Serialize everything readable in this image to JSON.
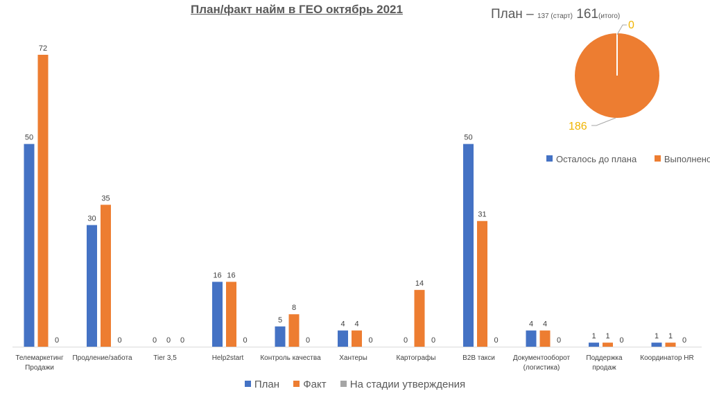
{
  "chart_data": [
    {
      "type": "bar",
      "title": "План/факт найм в ГЕО октябрь 2021",
      "xlabel": "",
      "ylabel": "",
      "ylim": [
        0,
        72
      ],
      "grid": false,
      "legend_position": "bottom",
      "categories": [
        [
          "Телемаркетинг",
          "Продажи"
        ],
        [
          "Продление/забота"
        ],
        [
          "Tier 3,5"
        ],
        [
          "Help2start"
        ],
        [
          "Контроль качества"
        ],
        [
          "Хантеры"
        ],
        [
          "Картографы"
        ],
        [
          "B2B такси"
        ],
        [
          "Документооборот",
          "(логистика)"
        ],
        [
          "Поддержка",
          "продаж"
        ],
        [
          "Координатор HR"
        ]
      ],
      "series": [
        {
          "name": "План",
          "color": "#4472c4",
          "values": [
            50,
            30,
            0,
            16,
            5,
            4,
            0,
            50,
            4,
            1,
            1
          ]
        },
        {
          "name": "Факт",
          "color": "#ed7d31",
          "values": [
            72,
            35,
            0,
            16,
            8,
            4,
            14,
            31,
            4,
            1,
            1
          ]
        },
        {
          "name": "На стадии утверждения",
          "color": "#a5a5a5",
          "values": [
            0,
            0,
            0,
            0,
            0,
            0,
            0,
            0,
            0,
            0,
            0
          ]
        }
      ]
    },
    {
      "type": "pie",
      "title_main": "План – ",
      "title_start_value": "137 (старт)",
      "title_total_value": "161",
      "title_total_suffix": "(итого)",
      "slices": [
        {
          "name": "Осталось до плана",
          "value": 0,
          "label": "0",
          "color": "#4472c4"
        },
        {
          "name": "Выполнено",
          "value": 186,
          "label": "186",
          "color": "#ed7d31"
        }
      ],
      "legend_position": "bottom"
    }
  ]
}
